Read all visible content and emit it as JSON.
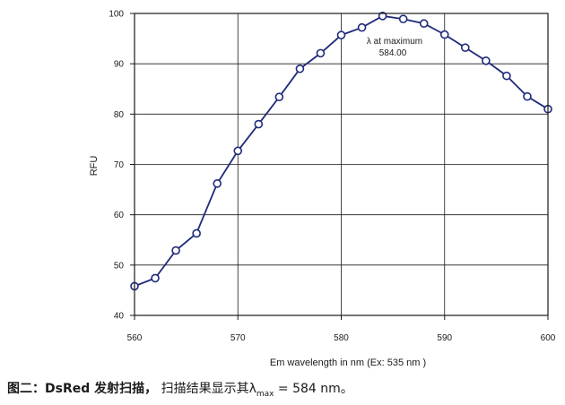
{
  "chart_data": {
    "type": "line",
    "xlabel": "Em wavelength in nm (Ex: 535 nm  )",
    "ylabel": "RFU",
    "xlim": [
      560,
      600
    ],
    "ylim": [
      40,
      100
    ],
    "xticks": [
      560,
      570,
      580,
      590,
      600
    ],
    "yticks": [
      40,
      50,
      60,
      70,
      80,
      90,
      100
    ],
    "grid": true,
    "series": [
      {
        "x": [
          560,
          562,
          564,
          566,
          568,
          570,
          572,
          574,
          576,
          578,
          580,
          582,
          584,
          586,
          588,
          590,
          592,
          594,
          596,
          598,
          600
        ],
        "y": [
          45.8,
          47.4,
          52.9,
          56.3,
          66.2,
          72.7,
          78.0,
          83.4,
          89.0,
          92.1,
          95.7,
          97.2,
          99.5,
          98.9,
          98.0,
          95.8,
          93.2,
          90.6,
          87.6,
          83.5,
          81.0
        ]
      }
    ],
    "annotation": {
      "line1": "λ at maximum",
      "line2": "584.00"
    },
    "colors": {
      "line": "#1f2a7a",
      "marker_fill": "#ffffff",
      "grid": "#1a1a1a"
    }
  },
  "caption": {
    "figure_label": "图二：",
    "title": "DsRed 发射扫描，",
    "text": " 扫描结果显示其λ",
    "subscript": "max",
    "value": " = 584 nm。"
  }
}
